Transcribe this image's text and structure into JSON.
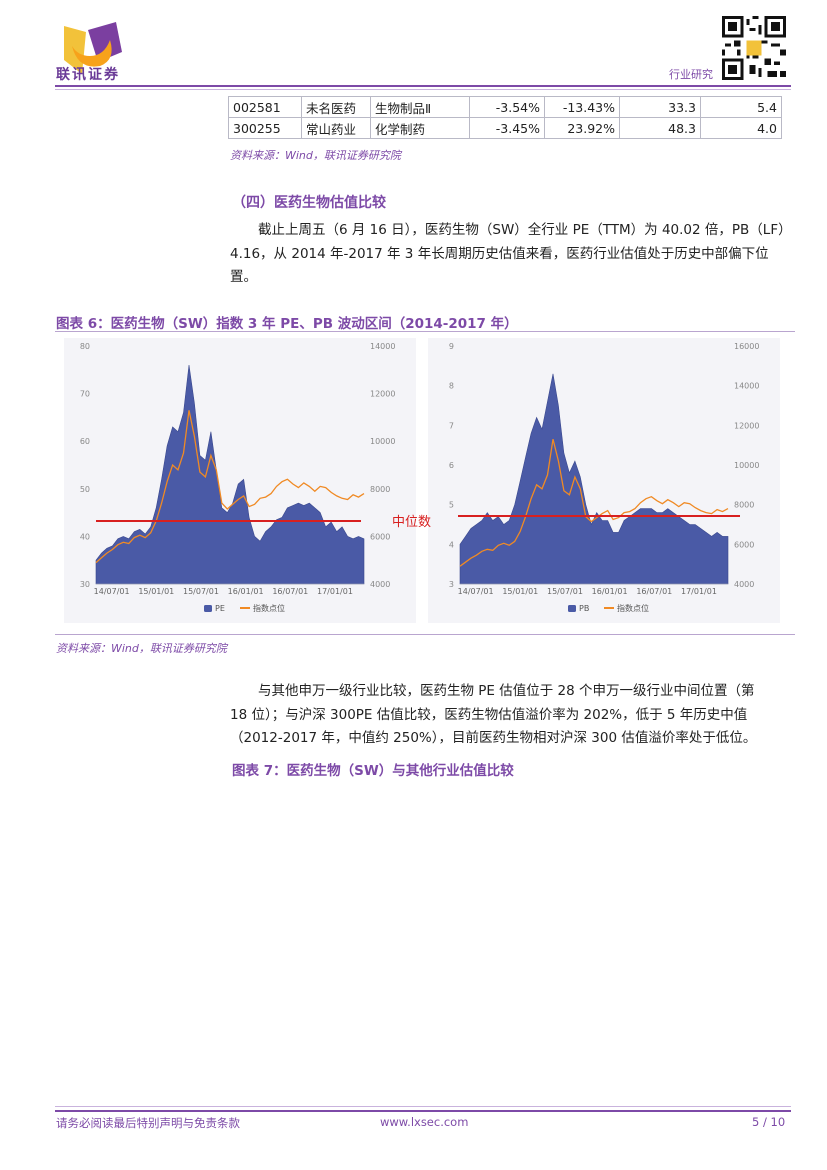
{
  "header": {
    "logo_text": "联讯证券",
    "section": "行业研究"
  },
  "stock_table": {
    "rows": [
      [
        "002581",
        "未名医药",
        "生物制品Ⅱ",
        "-3.54%",
        "-13.43%",
        "33.3",
        "5.4"
      ],
      [
        "300255",
        "常山药业",
        "化学制药",
        "-3.45%",
        "23.92%",
        "48.3",
        "4.0"
      ]
    ],
    "source": "资料来源：Wind，联讯证券研究院"
  },
  "section4": {
    "heading": "（四）医药生物估值比较",
    "para1_lines": [
      "截止上周五（6 月 16 日），医药生物（SW）全行业 PE（TTM）为 40.02 倍，PB（LF）",
      "4.16，从 2014 年-2017 年 3 年长周期历史估值来看，医药行业估值处于历史中部偏下位",
      "置。"
    ]
  },
  "figure6": {
    "title": "图表 6：医药生物（SW）指数 3 年 PE、PB 波动区间（2014-2017 年）",
    "median_label": "中位数",
    "source": "资料来源：Wind，联讯证券研究院"
  },
  "para2_lines": [
    "与其他申万一级行业比较，医药生物 PE 估值位于 28 个申万一级行业中间位置（第",
    "18 位）；与沪深 300PE 估值比较，医药生物估值溢价率为 202%，低于 5 年历史中值",
    "（2012-2017 年，中值约 250%），目前医药生物相对沪深 300 估值溢价率处于低位。"
  ],
  "figure7": {
    "title": "图表 7：医药生物（SW）与其他行业估值比较"
  },
  "footer": {
    "disclaimer": "请务必阅读最后特别声明与免责条款",
    "website": "www.lxsec.com",
    "page": "5 / 10"
  },
  "chart_data": [
    {
      "type": "area",
      "title": "",
      "x_ticks": [
        "14/07/01",
        "15/01/01",
        "15/07/01",
        "16/01/01",
        "16/07/01",
        "17/01/01"
      ],
      "y_left_ticks": [
        "30",
        "40",
        "50",
        "60",
        "70",
        "80"
      ],
      "y_left_range": [
        30,
        80
      ],
      "y_right_ticks": [
        "4000",
        "6000",
        "8000",
        "10000",
        "12000",
        "14000"
      ],
      "y_right_range": [
        4000,
        14000
      ],
      "median": 43.5,
      "series": [
        {
          "name": "PE",
          "axis": "left",
          "color": "#4a5aa6",
          "values": [
            35,
            36.5,
            37.5,
            38,
            39.5,
            40,
            39.5,
            41,
            41.5,
            40.5,
            42,
            46,
            52,
            59,
            63,
            62,
            66,
            76,
            68,
            57,
            56,
            62,
            54,
            46,
            45,
            47,
            51,
            52,
            44,
            40,
            39,
            41,
            42,
            43.5,
            44,
            46,
            46.5,
            47,
            46.5,
            47,
            46,
            45,
            42,
            43,
            41,
            42,
            40,
            39.5,
            40,
            39.5
          ]
        },
        {
          "name": "指数点位",
          "axis": "right",
          "color": "#f08a24",
          "values": [
            4900,
            5100,
            5300,
            5450,
            5650,
            5750,
            5700,
            5950,
            6050,
            5950,
            6150,
            6650,
            7400,
            8300,
            9000,
            8800,
            9500,
            11300,
            10200,
            8700,
            8500,
            9400,
            8800,
            7400,
            7150,
            7350,
            7550,
            7700,
            7250,
            7350,
            7600,
            7650,
            7800,
            8100,
            8300,
            8400,
            8200,
            8050,
            8250,
            8100,
            7900,
            8100,
            8050,
            7850,
            7700,
            7600,
            7550,
            7750,
            7650,
            7800
          ]
        }
      ]
    },
    {
      "type": "area",
      "title": "",
      "x_ticks": [
        "14/07/01",
        "15/01/01",
        "15/07/01",
        "16/01/01",
        "16/07/01",
        "17/01/01"
      ],
      "y_left_ticks": [
        "3",
        "4",
        "5",
        "6",
        "7",
        "8",
        "9"
      ],
      "y_left_range": [
        3,
        9
      ],
      "y_right_ticks": [
        "4000",
        "6000",
        "8000",
        "10000",
        "12000",
        "14000",
        "16000"
      ],
      "y_right_range": [
        4000,
        16000
      ],
      "median": 4.7,
      "series": [
        {
          "name": "PB",
          "axis": "left",
          "color": "#4a5aa6",
          "values": [
            4.0,
            4.2,
            4.4,
            4.5,
            4.6,
            4.8,
            4.6,
            4.7,
            4.5,
            4.6,
            5.0,
            5.6,
            6.2,
            6.8,
            7.2,
            6.9,
            7.6,
            8.3,
            7.5,
            6.3,
            5.8,
            6.1,
            5.7,
            5.0,
            4.5,
            4.8,
            4.6,
            4.6,
            4.3,
            4.3,
            4.6,
            4.7,
            4.8,
            4.9,
            4.9,
            4.9,
            4.8,
            4.8,
            4.9,
            4.8,
            4.7,
            4.6,
            4.5,
            4.5,
            4.4,
            4.3,
            4.2,
            4.3,
            4.2,
            4.2
          ]
        },
        {
          "name": "指数点位",
          "axis": "right",
          "color": "#f08a24",
          "values": [
            4900,
            5100,
            5300,
            5450,
            5650,
            5750,
            5700,
            5950,
            6050,
            5950,
            6150,
            6650,
            7400,
            8300,
            9000,
            8800,
            9500,
            11300,
            10200,
            8700,
            8500,
            9400,
            8800,
            7400,
            7150,
            7350,
            7550,
            7700,
            7250,
            7350,
            7600,
            7650,
            7800,
            8100,
            8300,
            8400,
            8200,
            8050,
            8250,
            8100,
            7900,
            8100,
            8050,
            7850,
            7700,
            7600,
            7550,
            7750,
            7650,
            7800
          ]
        }
      ]
    }
  ]
}
